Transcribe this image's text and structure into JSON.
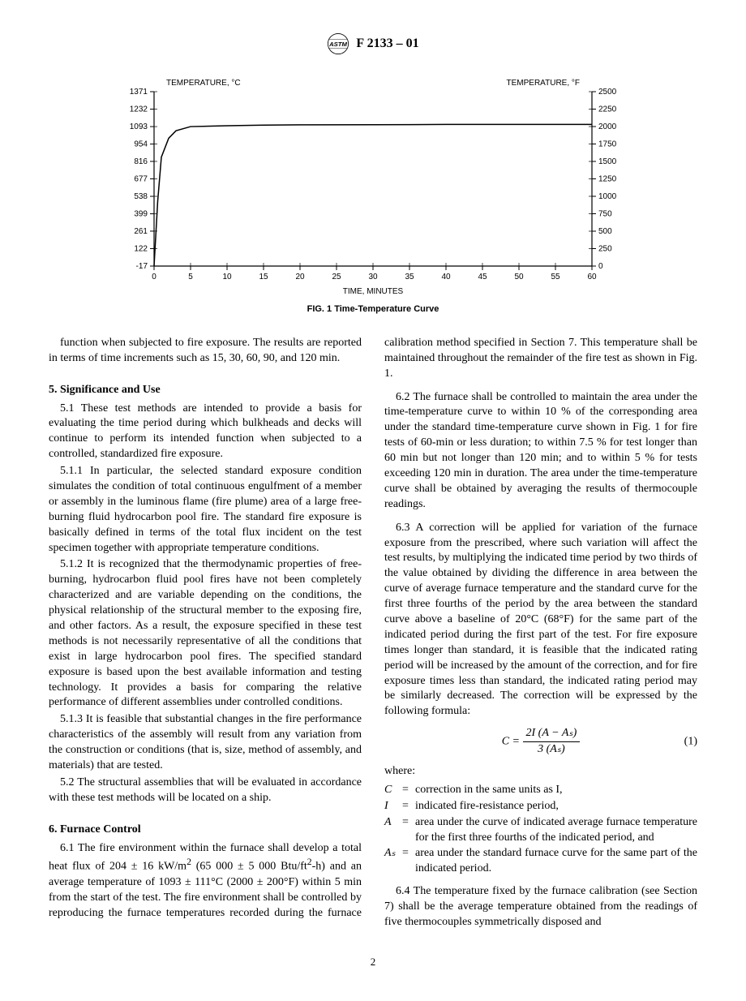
{
  "header": {
    "standard_id": "F 2133 – 01"
  },
  "chart": {
    "type": "line",
    "title_top_left": "TEMPERATURE, °C",
    "title_top_right": "TEMPERATURE, °F",
    "xlabel": "TIME, MINUTES",
    "caption": "FIG. 1 Time-Temperature Curve",
    "xlim": [
      0,
      60
    ],
    "ylim_c": [
      -17,
      1371
    ],
    "ylim_f": [
      0,
      2500
    ],
    "xtick_step": 5,
    "x_ticks": [
      0,
      5,
      10,
      15,
      20,
      25,
      30,
      35,
      40,
      45,
      50,
      55,
      60
    ],
    "y_ticks_c": [
      -17,
      122,
      261,
      399,
      538,
      677,
      816,
      954,
      1093,
      1232,
      1371
    ],
    "y_ticks_f": [
      0,
      250,
      500,
      750,
      1000,
      1250,
      1500,
      1750,
      2000,
      2250,
      2500
    ],
    "line_color": "#000000",
    "line_width": 1.5,
    "background_color": "#ffffff",
    "axis_color": "#000000",
    "tick_font_size": 10,
    "label_font_size": 10,
    "data_points": [
      [
        0,
        -17
      ],
      [
        0.5,
        500
      ],
      [
        1,
        850
      ],
      [
        2,
        1000
      ],
      [
        3,
        1060
      ],
      [
        5,
        1093
      ],
      [
        10,
        1100
      ],
      [
        15,
        1105
      ],
      [
        20,
        1107
      ],
      [
        30,
        1108
      ],
      [
        40,
        1110
      ],
      [
        50,
        1110
      ],
      [
        60,
        1110
      ]
    ]
  },
  "text": {
    "p0": "function when subjected to fire exposure. The results are reported in terms of time increments such as 15, 30, 60, 90, and 120 min.",
    "h5": "5. Significance and Use",
    "p5_1": "5.1 These test methods are intended to provide a basis for evaluating the time period during which bulkheads and decks will continue to perform its intended function when subjected to a controlled, standardized fire exposure.",
    "p5_1_1": "5.1.1 In particular, the selected standard exposure condition simulates the condition of total continuous engulfment of a member or assembly in the luminous flame (fire plume) area of a large free-burning fluid hydrocarbon pool fire. The standard fire exposure is basically defined in terms of the total flux incident on the test specimen together with appropriate temperature conditions.",
    "p5_1_2": "5.1.2 It is recognized that the thermodynamic properties of free-burning, hydrocarbon fluid pool fires have not been completely characterized and are variable depending on the conditions, the physical relationship of the structural member to the exposing fire, and other factors. As a result, the exposure specified in these test methods is not necessarily representative of all the conditions that exist in large hydrocarbon pool fires. The specified standard exposure is based upon the best available information and testing technology. It provides a basis for comparing the relative performance of different assemblies under controlled conditions.",
    "p5_1_3": "5.1.3 It is feasible that substantial changes in the fire performance characteristics of the assembly will result from any variation from the construction or conditions (that is, size, method of assembly, and materials) that are tested.",
    "p5_2": "5.2 The structural assemblies that will be evaluated in accordance with these test methods will be located on a ship.",
    "h6": "6. Furnace Control",
    "p6_1a": "6.1 The fire environment within the furnace shall develop a total heat flux of 204 ± 16 kW/m",
    "p6_1b": " (65 000 ± 5 000 Btu/ft",
    "p6_1c": "-h) and an average temperature of 1093 ± 111°C (2000 ± 200°F) within 5 min from the start of the test. The fire environment shall be controlled by reproducing the furnace temperatures recorded during the furnace calibration method specified in Section 7. This temperature shall be maintained throughout the remainder of the fire test as shown in Fig. 1.",
    "p6_2": "6.2 The furnace shall be controlled to maintain the area under the time-temperature curve to within 10 % of the corresponding area under the standard time-temperature curve shown in Fig. 1 for fire tests of 60-min or less duration; to within 7.5 % for test longer than 60 min but not longer than 120 min; and to within 5 % for tests exceeding 120 min in duration. The area under the time-temperature curve shall be obtained by averaging the results of thermocouple readings.",
    "p6_3": "6.3 A correction will be applied for variation of the furnace exposure from the prescribed, where such variation will affect the test results, by multiplying the indicated time period by two thirds of the value obtained by dividing the difference in area between the curve of average furnace temperature and the standard curve for the first three fourths of the period by the area between the standard curve above a baseline of 20°C (68°F) for the same part of the indicated period during the first part of the test. For fire exposure times longer than standard, it is feasible that the indicated rating period will be increased by the amount of the correction, and for fire exposure times less than standard, the indicated rating period may be similarly decreased. The correction will be expressed by the following formula:",
    "formula_num": "2I (A − Aₛ)",
    "formula_den": "3 (Aₛ)",
    "formula_lhs": "C = ",
    "eq_num": "(1)",
    "where_label": "where:",
    "w_C": "C",
    "w_C_def": "correction in the same units as I,",
    "w_I": "I",
    "w_I_def": "indicated fire-resistance period,",
    "w_A": "A",
    "w_A_def": "area under the curve of indicated average furnace temperature for the first three fourths of the indicated period, and",
    "w_As": "Aₛ",
    "w_As_def": "area under the standard furnace curve for the same part of the indicated period.",
    "p6_4": "6.4 The temperature fixed by the furnace calibration (see Section 7) shall be the average temperature obtained from the readings of five thermocouples symmetrically disposed and"
  },
  "page_number": "2"
}
